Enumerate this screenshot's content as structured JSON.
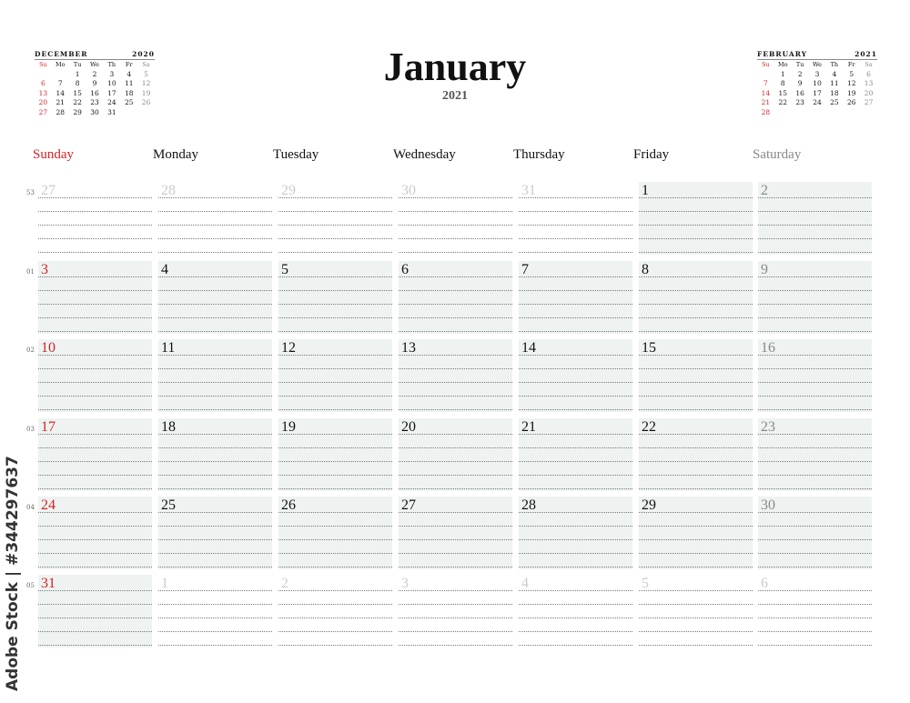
{
  "header": {
    "month": "January",
    "year": "2021"
  },
  "mini_prev": {
    "month": "DECEMBER",
    "year": "2020",
    "days_header": [
      "Su",
      "Mo",
      "Tu",
      "We",
      "Th",
      "Fr",
      "Sa"
    ],
    "weeks": [
      [
        "",
        "",
        "1",
        "2",
        "3",
        "4",
        "5"
      ],
      [
        "6",
        "7",
        "8",
        "9",
        "10",
        "11",
        "12"
      ],
      [
        "13",
        "14",
        "15",
        "16",
        "17",
        "18",
        "19"
      ],
      [
        "20",
        "21",
        "22",
        "23",
        "24",
        "25",
        "26"
      ],
      [
        "27",
        "28",
        "29",
        "30",
        "31",
        "",
        ""
      ]
    ]
  },
  "mini_next": {
    "month": "FEBRUARY",
    "year": "2021",
    "days_header": [
      "Su",
      "Mo",
      "Tu",
      "We",
      "Th",
      "Fr",
      "Sa"
    ],
    "weeks": [
      [
        "",
        "1",
        "2",
        "3",
        "4",
        "5",
        "6"
      ],
      [
        "7",
        "8",
        "9",
        "10",
        "11",
        "12",
        "13"
      ],
      [
        "14",
        "15",
        "16",
        "17",
        "18",
        "19",
        "20"
      ],
      [
        "21",
        "22",
        "23",
        "24",
        "25",
        "26",
        "27"
      ],
      [
        "28",
        "",
        "",
        "",
        "",
        "",
        ""
      ]
    ]
  },
  "weekdays": [
    "Sunday",
    "Monday",
    "Tuesday",
    "Wednesday",
    "Thursday",
    "Friday",
    "Saturday"
  ],
  "weeks": [
    {
      "week": "53",
      "days": [
        [
          "27",
          false
        ],
        [
          "28",
          false
        ],
        [
          "29",
          false
        ],
        [
          "30",
          false
        ],
        [
          "31",
          false
        ],
        [
          "1",
          true
        ],
        [
          "2",
          true
        ]
      ]
    },
    {
      "week": "01",
      "days": [
        [
          "3",
          true
        ],
        [
          "4",
          true
        ],
        [
          "5",
          true
        ],
        [
          "6",
          true
        ],
        [
          "7",
          true
        ],
        [
          "8",
          true
        ],
        [
          "9",
          true
        ]
      ]
    },
    {
      "week": "02",
      "days": [
        [
          "10",
          true
        ],
        [
          "11",
          true
        ],
        [
          "12",
          true
        ],
        [
          "13",
          true
        ],
        [
          "14",
          true
        ],
        [
          "15",
          true
        ],
        [
          "16",
          true
        ]
      ]
    },
    {
      "week": "03",
      "days": [
        [
          "17",
          true
        ],
        [
          "18",
          true
        ],
        [
          "19",
          true
        ],
        [
          "20",
          true
        ],
        [
          "21",
          true
        ],
        [
          "22",
          true
        ],
        [
          "23",
          true
        ]
      ]
    },
    {
      "week": "04",
      "days": [
        [
          "24",
          true
        ],
        [
          "25",
          true
        ],
        [
          "26",
          true
        ],
        [
          "27",
          true
        ],
        [
          "28",
          true
        ],
        [
          "29",
          true
        ],
        [
          "30",
          true
        ]
      ]
    },
    {
      "week": "05",
      "days": [
        [
          "31",
          true
        ],
        [
          "1",
          false
        ],
        [
          "2",
          false
        ],
        [
          "3",
          false
        ],
        [
          "4",
          false
        ],
        [
          "5",
          false
        ],
        [
          "6",
          false
        ]
      ]
    }
  ],
  "watermark": "Adobe Stock | #344297637",
  "colors": {
    "sunday": "#d2232a",
    "saturday": "#888888",
    "outside": "#cccccc",
    "cell_fill": "#eef3f1"
  }
}
